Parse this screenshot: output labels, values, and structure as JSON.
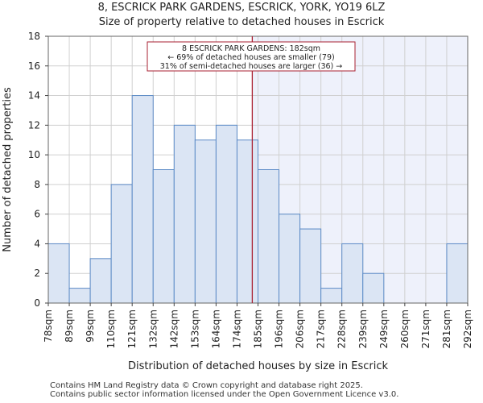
{
  "titles": {
    "line1": "8, ESCRICK PARK GARDENS, ESCRICK, YORK, YO19 6LZ",
    "line2": "Size of property relative to detached houses in Escrick"
  },
  "footer": {
    "line1": "Contains HM Land Registry data © Crown copyright and database right 2025.",
    "line2": "Contains public sector information licensed under the Open Government Licence v3.0."
  },
  "chart_data": {
    "type": "bar",
    "title": "Size of property relative to detached houses in Escrick",
    "xlabel": "Distribution of detached houses by size in Escrick",
    "ylabel": "Number of detached properties",
    "ylim": [
      0,
      18
    ],
    "yticks": [
      0,
      2,
      4,
      6,
      8,
      10,
      12,
      14,
      16,
      18
    ],
    "bin_edges": [
      "78sqm",
      "89sqm",
      "99sqm",
      "110sqm",
      "121sqm",
      "132sqm",
      "142sqm",
      "153sqm",
      "164sqm",
      "174sqm",
      "185sqm",
      "196sqm",
      "206sqm",
      "217sqm",
      "228sqm",
      "239sqm",
      "249sqm",
      "260sqm",
      "271sqm",
      "281sqm",
      "292sqm"
    ],
    "values": [
      4,
      1,
      3,
      8,
      14,
      9,
      12,
      11,
      12,
      11,
      9,
      6,
      5,
      1,
      4,
      2,
      0,
      0,
      0,
      4
    ],
    "property_marker": {
      "value_sqm": 182,
      "label_lines": [
        "8 ESCRICK PARK GARDENS: 182sqm",
        "← 69% of detached houses are smaller (79)",
        "31% of semi-detached houses are larger (36) →"
      ]
    },
    "colors": {
      "bar_fill": "#dbe5f4",
      "bar_stroke": "#5b8ac6",
      "shaded_region": "#eef1fb",
      "marker_line": "#aa2233",
      "grid": "#d0d0d0"
    },
    "grid": true
  }
}
